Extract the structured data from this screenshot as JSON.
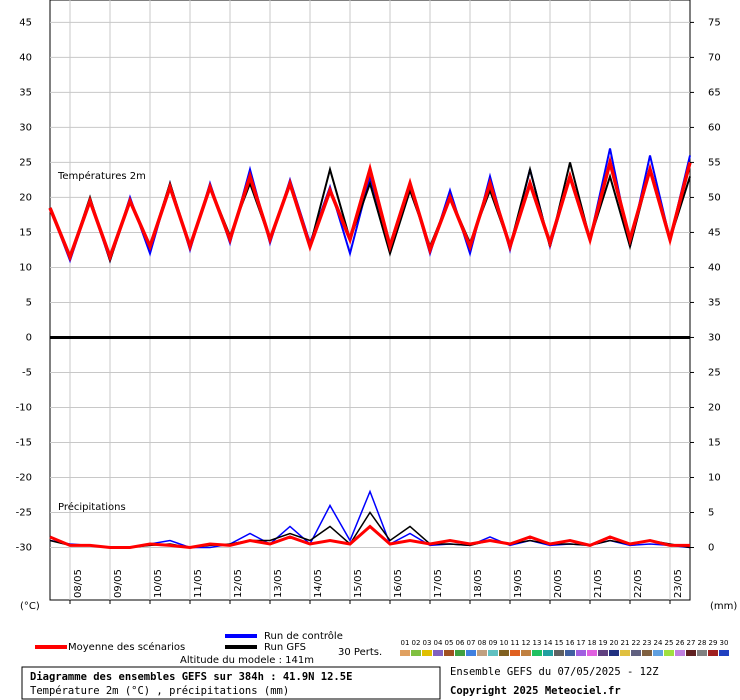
{
  "chart_data": {
    "type": "line",
    "panel_labels": [
      "Températures 2m",
      "Précipitations"
    ],
    "y_unit_label": "(°C)",
    "y2_unit_label": "(mm)",
    "x": [
      0,
      12,
      24,
      36,
      48,
      60,
      72,
      84,
      96,
      108,
      120,
      132,
      144,
      156,
      168,
      180,
      192,
      204,
      216,
      228,
      240,
      252,
      264,
      276,
      288,
      300,
      312,
      324,
      336,
      348,
      360,
      372,
      384
    ],
    "xlim": [
      0,
      384
    ],
    "xticks": [
      {
        "value": 12,
        "label": "08/05"
      },
      {
        "value": 36,
        "label": "09/05"
      },
      {
        "value": 60,
        "label": "10/05"
      },
      {
        "value": 84,
        "label": "11/05"
      },
      {
        "value": 108,
        "label": "12/05"
      },
      {
        "value": 132,
        "label": "13/05"
      },
      {
        "value": 156,
        "label": "14/05"
      },
      {
        "value": 180,
        "label": "15/05"
      },
      {
        "value": 204,
        "label": "16/05"
      },
      {
        "value": 228,
        "label": "17/05"
      },
      {
        "value": 252,
        "label": "18/05"
      },
      {
        "value": 276,
        "label": "19/05"
      },
      {
        "value": 300,
        "label": "20/05"
      },
      {
        "value": 324,
        "label": "21/05"
      },
      {
        "value": 348,
        "label": "22/05"
      },
      {
        "value": 372,
        "label": "23/05"
      }
    ],
    "ylim": [
      -37.5,
      48.2
    ],
    "yticks": [
      -30,
      -25,
      -20,
      -15,
      -10,
      -5,
      0,
      5,
      10,
      15,
      20,
      25,
      30,
      35,
      40,
      45
    ],
    "y2lim": [
      -7.5,
      78.2
    ],
    "y2ticks": [
      0,
      5,
      10,
      15,
      20,
      25,
      30,
      35,
      40,
      45,
      50,
      55,
      60,
      65,
      70,
      75
    ],
    "grid": true,
    "series": [
      {
        "name": "Run de contrôle",
        "color": "#0000ff",
        "values": [
          18.5,
          11,
          19.5,
          11,
          20,
          12,
          22,
          12.5,
          22,
          13.5,
          24,
          13.5,
          22.5,
          13.5,
          21.5,
          12,
          23,
          13,
          22,
          12,
          21,
          12,
          23,
          12.5,
          24,
          13,
          23,
          14,
          27,
          13,
          26,
          14,
          26
        ]
      },
      {
        "name": "Run GFS",
        "color": "#000000",
        "values": [
          18.5,
          11.5,
          20,
          11,
          19.5,
          13,
          22,
          13,
          21.5,
          14.5,
          22,
          14,
          22,
          13,
          24,
          14,
          22,
          12,
          21,
          13,
          20,
          13.5,
          21,
          13,
          24,
          13,
          25,
          14,
          23,
          13,
          24,
          14,
          23
        ]
      },
      {
        "name": "Moyenne des scénarios",
        "color": "#ff0000",
        "values": [
          18.5,
          11.5,
          19.5,
          11.5,
          19.5,
          13,
          21.5,
          13,
          21.5,
          14,
          23,
          14,
          22,
          13,
          21,
          14,
          24,
          13,
          22,
          12.5,
          20,
          13,
          22,
          13,
          22,
          13.5,
          23,
          14,
          25,
          14,
          24,
          14,
          25
        ]
      }
    ],
    "precipitation_series": [
      {
        "axis": "y2",
        "color": "#0000ff",
        "values": [
          1,
          0.5,
          0.3,
          0,
          0,
          0.5,
          1,
          0,
          0,
          0.5,
          2,
          0.5,
          3,
          0.5,
          6,
          1,
          8,
          0.5,
          2,
          0.3,
          0.5,
          0.3,
          1.5,
          0.3,
          1,
          0.3,
          0.5,
          0.3,
          1,
          0.3,
          0.5,
          0.3,
          0
        ]
      },
      {
        "axis": "y2",
        "color": "#000000",
        "values": [
          1,
          0.3,
          0.3,
          0,
          0,
          0.3,
          0.5,
          0,
          0.3,
          0.5,
          1,
          1,
          2,
          1,
          3,
          0.5,
          5,
          1,
          3,
          0.5,
          0.5,
          0.3,
          1,
          0.5,
          1,
          0.5,
          0.5,
          0.3,
          1,
          0.5,
          1,
          0.5,
          0
        ]
      },
      {
        "axis": "y2",
        "color": "#ff0000",
        "values": [
          1.5,
          0.3,
          0.3,
          0,
          0,
          0.5,
          0.3,
          0,
          0.5,
          0.3,
          1,
          0.5,
          1.5,
          0.5,
          1,
          0.5,
          3,
          0.5,
          1,
          0.5,
          1,
          0.5,
          1,
          0.5,
          1.5,
          0.5,
          1,
          0.3,
          1.5,
          0.5,
          1,
          0.3,
          0.3
        ]
      }
    ],
    "perturbations_label": "30 Perts.",
    "perturbations": [
      {
        "name": "01",
        "color": "#e0a060"
      },
      {
        "name": "02",
        "color": "#80c040"
      },
      {
        "name": "03",
        "color": "#e0c000"
      },
      {
        "name": "04",
        "color": "#8060c0"
      },
      {
        "name": "05",
        "color": "#a05020"
      },
      {
        "name": "06",
        "color": "#40a040"
      },
      {
        "name": "07",
        "color": "#4080e0"
      },
      {
        "name": "08",
        "color": "#c0a080"
      },
      {
        "name": "09",
        "color": "#60c0c0"
      },
      {
        "name": "10",
        "color": "#806020"
      },
      {
        "name": "11",
        "color": "#e06020"
      },
      {
        "name": "12",
        "color": "#c08040"
      },
      {
        "name": "13",
        "color": "#20c060"
      },
      {
        "name": "14",
        "color": "#20a0a0"
      },
      {
        "name": "15",
        "color": "#606060"
      },
      {
        "name": "16",
        "color": "#4060a0"
      },
      {
        "name": "17",
        "color": "#a060e0"
      },
      {
        "name": "18",
        "color": "#e060e0"
      },
      {
        "name": "19",
        "color": "#604080"
      },
      {
        "name": "20",
        "color": "#203080"
      },
      {
        "name": "21",
        "color": "#e0c040"
      },
      {
        "name": "22",
        "color": "#606080"
      },
      {
        "name": "23",
        "color": "#806040"
      },
      {
        "name": "24",
        "color": "#60a0e0"
      },
      {
        "name": "25",
        "color": "#a0e040"
      },
      {
        "name": "26",
        "color": "#c080e0"
      },
      {
        "name": "27",
        "color": "#602020"
      },
      {
        "name": "28",
        "color": "#808080"
      },
      {
        "name": "29",
        "color": "#a02020"
      },
      {
        "name": "30",
        "color": "#2040c0"
      }
    ],
    "altitude": "Altitude du modele : 141m",
    "footer": {
      "title": "Diagramme des ensembles GEFS sur 384h : 41.9N 12.5E",
      "subtitle": "Température 2m (°C) , précipitations (mm)",
      "run": "Ensemble GEFS du 07/05/2025 - 12Z",
      "copyright": "Copyright 2025 Meteociel.fr"
    }
  }
}
